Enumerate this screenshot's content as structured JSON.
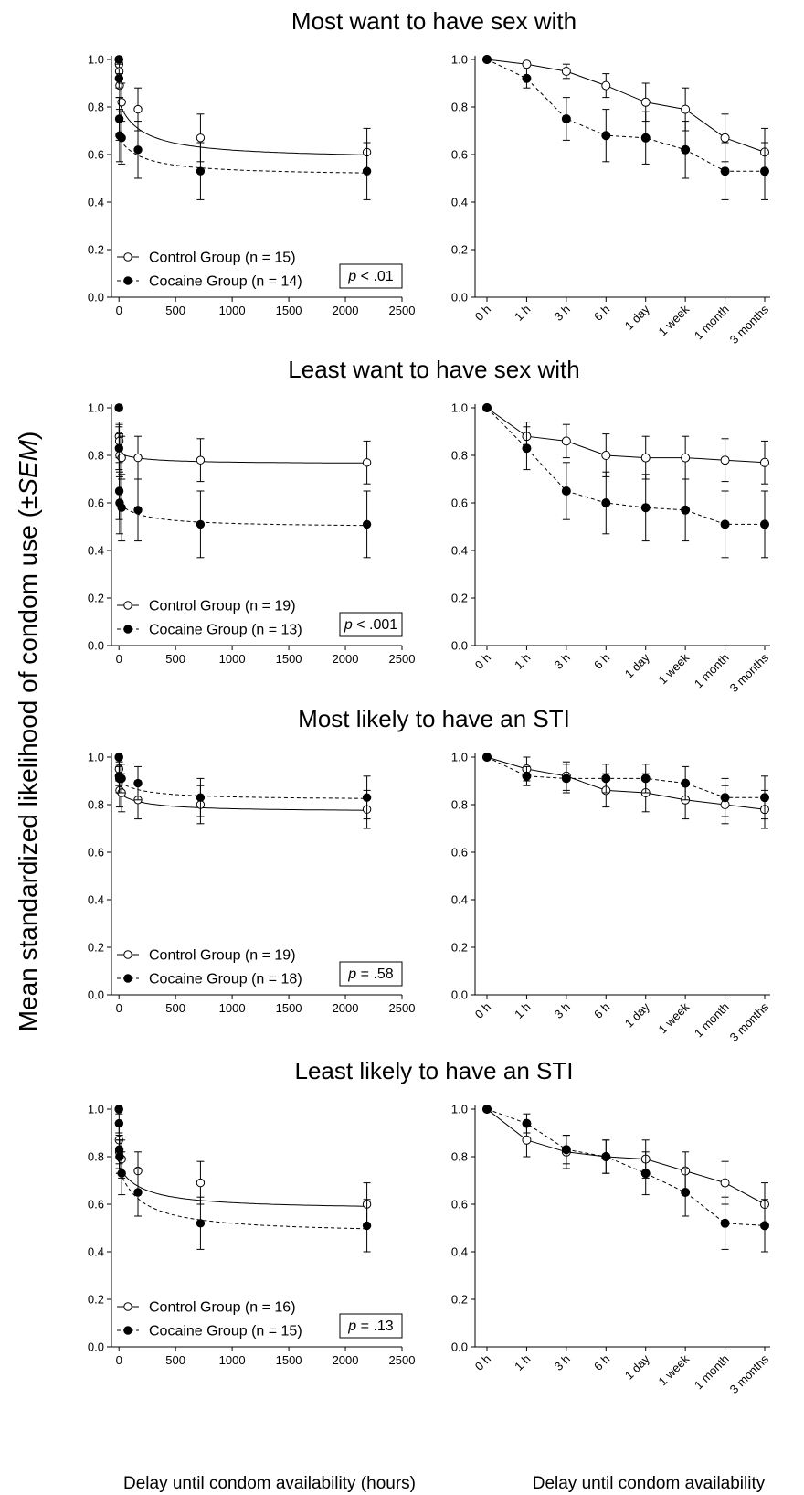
{
  "figure": {
    "ylabel_prefix": "Mean standardized likelihood of condom use (±",
    "ylabel_italic": "SEM",
    "ylabel_suffix": ")",
    "xlabel_left": "Delay until condom availability (hours)",
    "xlabel_right": "Delay until condom availability"
  },
  "chart_data": [
    {
      "type": "line",
      "title": "Most want to have sex with",
      "legend": [
        "Control Group (n = 15)",
        "Cocaine Group (n = 14)"
      ],
      "p_label": "p < .01",
      "ylim": [
        0,
        1
      ],
      "y_ticks": [
        "0.0",
        "0.2",
        "0.4",
        "0.6",
        "0.8",
        "1.0"
      ],
      "x_hours": [
        0,
        1,
        3,
        6,
        24,
        168,
        720,
        2190
      ],
      "x_hours_ticks": [
        "0",
        "500",
        "1000",
        "1500",
        "2000",
        "2500"
      ],
      "xlim_hours": [
        -50,
        2500
      ],
      "categories": [
        "0 h",
        "1 h",
        "3 h",
        "6 h",
        "1 day",
        "1 week",
        "1 month",
        "3 months"
      ],
      "series": [
        {
          "name": "Control Group (n = 15)",
          "marker": "open",
          "values": [
            1.0,
            0.98,
            0.95,
            0.89,
            0.82,
            0.79,
            0.67,
            0.61
          ],
          "sem": [
            0,
            0.01,
            0.03,
            0.05,
            0.08,
            0.09,
            0.1,
            0.1
          ],
          "fit": {
            "a": 0.82,
            "b": 0.035
          }
        },
        {
          "name": "Cocaine Group (n = 14)",
          "marker": "filled",
          "values": [
            1.0,
            0.92,
            0.75,
            0.68,
            0.67,
            0.62,
            0.53,
            0.53
          ],
          "sem": [
            0,
            0.04,
            0.09,
            0.11,
            0.11,
            0.12,
            0.12,
            0.12
          ],
          "fit": {
            "a": 0.67,
            "b": 0.05
          }
        }
      ]
    },
    {
      "type": "line",
      "title": "Least want to have sex with",
      "legend": [
        "Control Group (n = 19)",
        "Cocaine Group (n = 13)"
      ],
      "p_label": "p < .001",
      "ylim": [
        0,
        1
      ],
      "y_ticks": [
        "0.0",
        "0.2",
        "0.4",
        "0.6",
        "0.8",
        "1.0"
      ],
      "x_hours": [
        0,
        1,
        3,
        6,
        24,
        168,
        720,
        2190
      ],
      "x_hours_ticks": [
        "0",
        "500",
        "1000",
        "1500",
        "2000",
        "2500"
      ],
      "xlim_hours": [
        -50,
        2500
      ],
      "categories": [
        "0 h",
        "1 h",
        "3 h",
        "6 h",
        "1 day",
        "1 week",
        "1 month",
        "3 months"
      ],
      "series": [
        {
          "name": "Control Group (n = 19)",
          "marker": "open",
          "values": [
            1.0,
            0.88,
            0.86,
            0.8,
            0.79,
            0.79,
            0.78,
            0.77
          ],
          "sem": [
            0,
            0.06,
            0.07,
            0.09,
            0.09,
            0.09,
            0.09,
            0.09
          ],
          "fit": {
            "a": 0.81,
            "b": 0.01
          }
        },
        {
          "name": "Cocaine Group (n = 13)",
          "marker": "filled",
          "values": [
            1.0,
            0.83,
            0.65,
            0.6,
            0.58,
            0.57,
            0.51,
            0.51
          ],
          "sem": [
            0,
            0.09,
            0.12,
            0.13,
            0.14,
            0.13,
            0.14,
            0.14
          ],
          "fit": {
            "a": 0.6,
            "b": 0.045
          }
        }
      ]
    },
    {
      "type": "line",
      "title": "Most likely to have an STI",
      "legend": [
        "Control Group (n = 19)",
        "Cocaine Group (n = 18)"
      ],
      "p_label": "p = .58",
      "ylim": [
        0,
        1
      ],
      "y_ticks": [
        "0.0",
        "0.2",
        "0.4",
        "0.6",
        "0.8",
        "1.0"
      ],
      "x_hours": [
        0,
        1,
        3,
        6,
        24,
        168,
        720,
        2190
      ],
      "x_hours_ticks": [
        "0",
        "500",
        "1000",
        "1500",
        "2000",
        "2500"
      ],
      "xlim_hours": [
        -50,
        2500
      ],
      "categories": [
        "0 h",
        "1 h",
        "3 h",
        "6 h",
        "1 day",
        "1 week",
        "1 month",
        "3 months"
      ],
      "series": [
        {
          "name": "Control Group (n = 19)",
          "marker": "open",
          "values": [
            1.0,
            0.95,
            0.92,
            0.86,
            0.85,
            0.82,
            0.8,
            0.78
          ],
          "sem": [
            0,
            0.05,
            0.06,
            0.07,
            0.08,
            0.08,
            0.08,
            0.08
          ],
          "fit": {
            "a": 0.85,
            "b": 0.015
          }
        },
        {
          "name": "Cocaine Group (n = 18)",
          "marker": "filled",
          "values": [
            1.0,
            0.92,
            0.91,
            0.91,
            0.91,
            0.89,
            0.83,
            0.83
          ],
          "sem": [
            0,
            0.04,
            0.06,
            0.06,
            0.06,
            0.07,
            0.08,
            0.09
          ],
          "fit": {
            "a": 0.9,
            "b": 0.01
          }
        }
      ]
    },
    {
      "type": "line",
      "title": "Least likely to have an STI",
      "legend": [
        "Control Group (n = 16)",
        "Cocaine Group (n = 15)"
      ],
      "p_label": "p = .13",
      "ylim": [
        0,
        1
      ],
      "y_ticks": [
        "0.0",
        "0.2",
        "0.4",
        "0.6",
        "0.8",
        "1.0"
      ],
      "x_hours": [
        0,
        1,
        3,
        6,
        24,
        168,
        720,
        2190
      ],
      "x_hours_ticks": [
        "0",
        "500",
        "1000",
        "1500",
        "2000",
        "2500"
      ],
      "xlim_hours": [
        -50,
        2500
      ],
      "categories": [
        "0 h",
        "1 h",
        "3 h",
        "6 h",
        "1 day",
        "1 week",
        "1 month",
        "3 months"
      ],
      "series": [
        {
          "name": "Control Group (n = 16)",
          "marker": "open",
          "values": [
            1.0,
            0.87,
            0.82,
            0.8,
            0.79,
            0.74,
            0.69,
            0.6
          ],
          "sem": [
            0,
            0.07,
            0.07,
            0.07,
            0.08,
            0.08,
            0.09,
            0.09
          ],
          "fit": {
            "a": 0.76,
            "b": 0.03
          }
        },
        {
          "name": "Cocaine Group (n = 15)",
          "marker": "filled",
          "values": [
            1.0,
            0.94,
            0.83,
            0.8,
            0.73,
            0.65,
            0.52,
            0.51
          ],
          "sem": [
            0,
            0.04,
            0.06,
            0.07,
            0.09,
            0.1,
            0.11,
            0.11
          ],
          "fit": {
            "a": 0.75,
            "b": 0.06
          }
        }
      ]
    }
  ]
}
